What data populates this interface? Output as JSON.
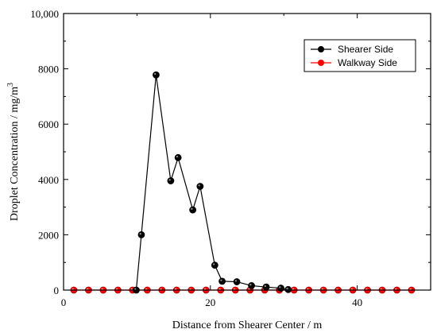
{
  "chart_data": {
    "type": "line",
    "xlabel": "Distance from Shearer Center / m",
    "ylabel": "Droplet Concentration / mg/m",
    "ylabel_sup": "3",
    "xlim": [
      0,
      50
    ],
    "ylim": [
      0,
      10000
    ],
    "xticks": [
      0,
      20,
      40
    ],
    "xtick_labels": [
      "0",
      "20",
      "40"
    ],
    "yticks": [
      0,
      2000,
      4000,
      6000,
      8000,
      10000
    ],
    "ytick_labels": [
      "0",
      "2000",
      "4000",
      "6000",
      "8000",
      "10,000"
    ],
    "legend_position": "top-right",
    "series": [
      {
        "name": "Shearer Side",
        "color": "#000000",
        "x": [
          9.9,
          10.6,
          12.6,
          14.6,
          15.6,
          17.6,
          18.6,
          20.6,
          21.6,
          23.6,
          25.6,
          27.6,
          29.6,
          30.6
        ],
        "y": [
          0,
          2000,
          7780,
          3950,
          4790,
          2900,
          3750,
          900,
          320,
          300,
          160,
          110,
          70,
          20
        ]
      },
      {
        "name": "Walkway Side",
        "color": "#ff0000",
        "x": [
          1.4,
          3.4,
          5.4,
          7.4,
          9.4,
          11.4,
          13.4,
          15.4,
          17.4,
          19.4,
          21.4,
          23.4,
          25.4,
          27.4,
          29.4,
          31.4,
          33.4,
          35.4,
          37.4,
          39.4,
          41.4,
          43.4,
          45.4,
          47.4
        ],
        "y": [
          0,
          0,
          0,
          0,
          0,
          0,
          0,
          0,
          0,
          0,
          0,
          0,
          0,
          0,
          0,
          0,
          0,
          0,
          0,
          0,
          0,
          0,
          0,
          0
        ]
      }
    ]
  }
}
